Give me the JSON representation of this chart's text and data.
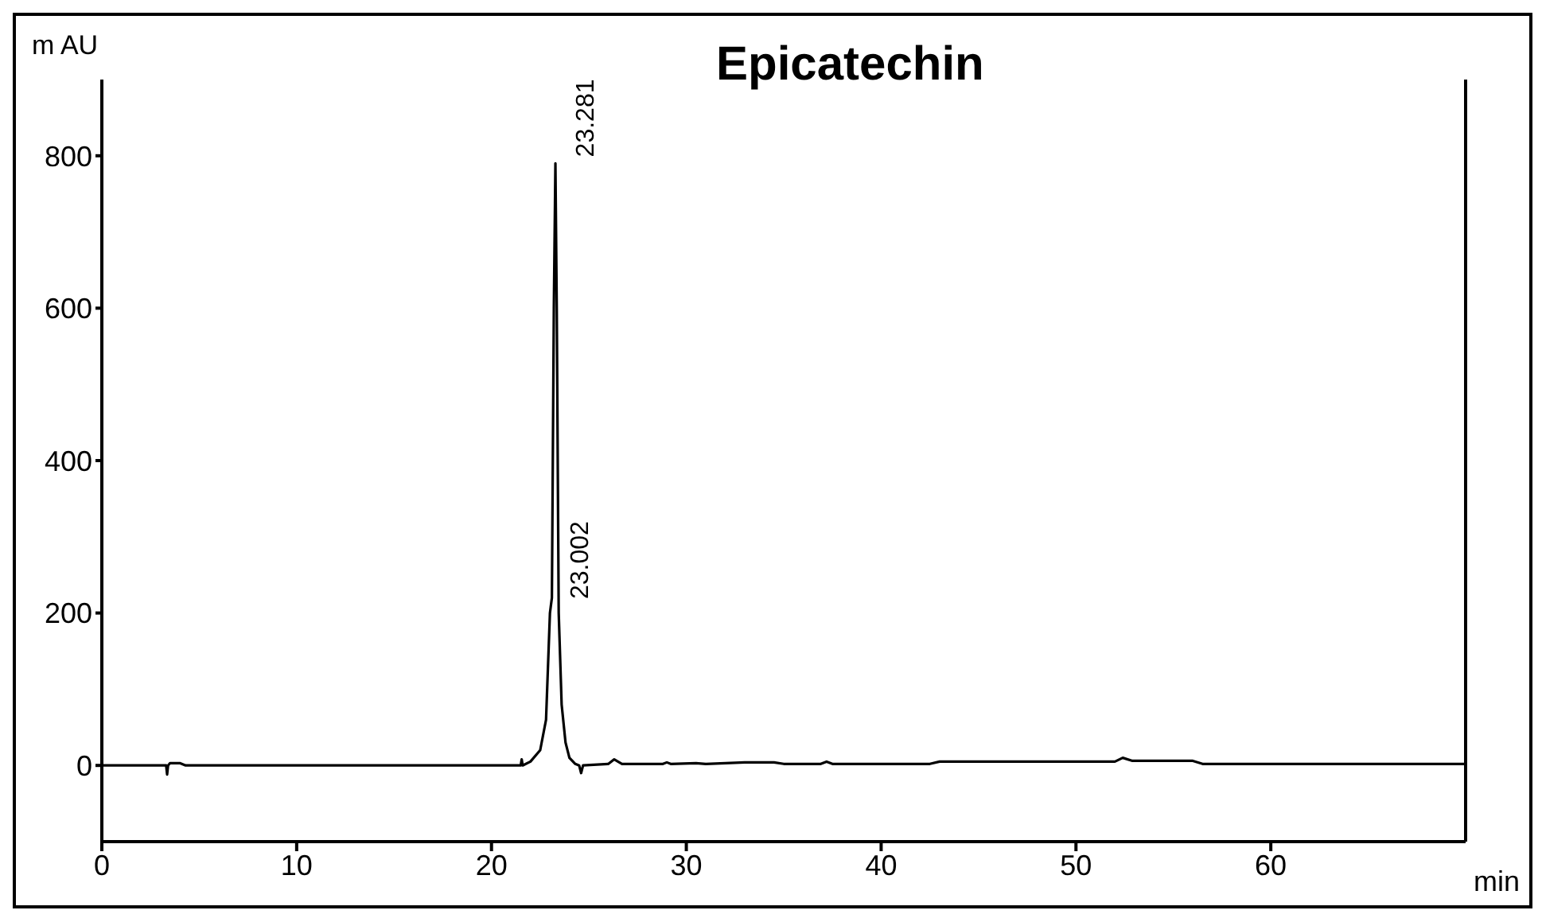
{
  "chart_data": {
    "type": "line",
    "title": "Epicatechin",
    "xlabel": "min",
    "ylabel": "m AU",
    "x": [
      0,
      3.3,
      3.35,
      3.4,
      3.5,
      4.0,
      4.3,
      21.5,
      21.55,
      21.6,
      22.0,
      22.5,
      22.8,
      23.0,
      23.1,
      23.2,
      23.281,
      23.35,
      23.45,
      23.6,
      23.8,
      24.0,
      24.3,
      24.5,
      24.6,
      24.7,
      26.0,
      26.3,
      26.7,
      28.8,
      29.0,
      29.2,
      30.5,
      31.0,
      33.0,
      34.5,
      35.0,
      36.9,
      37.2,
      37.5,
      42.5,
      43.0,
      52.0,
      52.4,
      52.9,
      56.0,
      56.5,
      70
    ],
    "series": [
      {
        "color": "#000000",
        "values": [
          0,
          0,
          -12,
          0,
          3,
          3,
          0,
          0,
          8,
          0,
          5,
          20,
          60,
          200,
          220,
          600,
          790,
          600,
          200,
          80,
          30,
          10,
          2,
          0,
          -10,
          0,
          2,
          8,
          2,
          2,
          4,
          2,
          3,
          2,
          4,
          4,
          2,
          2,
          5,
          2,
          2,
          5,
          5,
          10,
          6,
          6,
          2,
          2
        ]
      }
    ],
    "xlim": [
      0,
      70
    ],
    "ylim": [
      -100,
      900
    ],
    "xticks": [
      0,
      10,
      20,
      30,
      40,
      50,
      60
    ],
    "yticks": [
      0,
      200,
      400,
      600,
      800
    ],
    "annotations": [
      {
        "text": "23.281",
        "x": 23.281,
        "y": 790
      },
      {
        "text": "23.002",
        "x": 23.002,
        "y": 210
      }
    ],
    "grid": false,
    "legend": false,
    "marker": "none",
    "line_style": "solid"
  }
}
